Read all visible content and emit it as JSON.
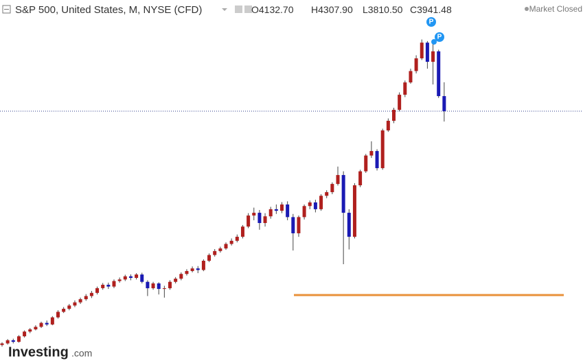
{
  "header": {
    "symbol": "S&P 500, United States, M, NYSE (CFD)",
    "ohlc": [
      {
        "label": "O",
        "value": "4132.70"
      },
      {
        "label": "H",
        "value": "4307.90"
      },
      {
        "label": "L",
        "value": "3810.50"
      },
      {
        "label": "C",
        "value": "3941.48"
      }
    ],
    "status": "Market Closed"
  },
  "markers": [
    "P",
    "P"
  ],
  "logo": {
    "brand": "Investing",
    "suffix": ".com"
  },
  "chart_data": {
    "type": "candlestick",
    "open": [
      980,
      1000,
      1040,
      1020,
      1090,
      1150,
      1178,
      1210,
      1260,
      1240,
      1330,
      1400,
      1439,
      1480,
      1520,
      1560,
      1600,
      1640,
      1700,
      1743,
      1720,
      1790,
      1810,
      1850,
      1830,
      1873,
      1780,
      1699,
      1760,
      1690,
      1699,
      1780,
      1820,
      1880,
      1917,
      1950,
      1930,
      2047,
      2120,
      2170,
      2203,
      2260,
      2300,
      2351,
      2480,
      2620,
      2655,
      2525,
      2610,
      2700,
      2680,
      2760,
      2600,
      2395,
      2600,
      2740,
      2786,
      2700,
      2870,
      2916,
      3020,
      3133,
      2655,
      2351,
      3003,
      3180,
      3380,
      3437,
      3220,
      3698,
      3820,
      3959,
      4150,
      4306,
      4450,
      4611,
      4810,
      4567,
      4700,
      4132.7
    ],
    "high": [
      1015,
      1055,
      1060,
      1105,
      1165,
      1195,
      1230,
      1275,
      1290,
      1345,
      1420,
      1460,
      1500,
      1545,
      1580,
      1625,
      1665,
      1720,
      1765,
      1770,
      1810,
      1835,
      1870,
      1875,
      1890,
      1895,
      1800,
      1780,
      1775,
      1730,
      1800,
      1840,
      1900,
      1940,
      1975,
      1980,
      2065,
      2140,
      2195,
      2225,
      2280,
      2330,
      2380,
      2500,
      2650,
      2720,
      2690,
      2650,
      2730,
      2760,
      2790,
      2800,
      2640,
      2620,
      2760,
      2810,
      2820,
      2890,
      2940,
      3040,
      3240,
      3180,
      2700,
      3030,
      3200,
      3400,
      3560,
      3460,
      3720,
      3850,
      3985,
      4180,
      4330,
      4480,
      4650,
      4850,
      4830,
      4790,
      4720,
      4307.9
    ],
    "low": [
      960,
      985,
      1000,
      1010,
      1075,
      1130,
      1165,
      1195,
      1220,
      1230,
      1315,
      1385,
      1420,
      1460,
      1500,
      1540,
      1575,
      1620,
      1680,
      1690,
      1700,
      1770,
      1790,
      1800,
      1810,
      1760,
      1600,
      1680,
      1620,
      1580,
      1680,
      1760,
      1800,
      1860,
      1900,
      1890,
      1915,
      2030,
      2100,
      2150,
      2185,
      2240,
      2280,
      2330,
      2460,
      2560,
      2440,
      2480,
      2580,
      2640,
      2650,
      2560,
      2177,
      2350,
      2570,
      2700,
      2660,
      2680,
      2840,
      2890,
      3000,
      2004,
      2190,
      2330,
      2980,
      3160,
      3350,
      3190,
      3200,
      3680,
      3790,
      3940,
      4120,
      4290,
      4420,
      4590,
      4480,
      4280,
      4110,
      3810.5
    ],
    "close": [
      1000,
      1040,
      1020,
      1090,
      1150,
      1178,
      1210,
      1260,
      1240,
      1330,
      1400,
      1439,
      1480,
      1520,
      1560,
      1600,
      1640,
      1700,
      1743,
      1720,
      1790,
      1810,
      1850,
      1830,
      1873,
      1780,
      1699,
      1760,
      1690,
      1699,
      1780,
      1820,
      1880,
      1917,
      1950,
      1930,
      2047,
      2120,
      2170,
      2203,
      2260,
      2300,
      2351,
      2480,
      2620,
      2655,
      2525,
      2610,
      2700,
      2680,
      2760,
      2600,
      2395,
      2600,
      2740,
      2786,
      2700,
      2870,
      2916,
      3020,
      3133,
      2655,
      2351,
      3003,
      3180,
      3380,
      3437,
      3220,
      3698,
      3820,
      3959,
      4150,
      4306,
      4450,
      4611,
      4810,
      4567,
      4700,
      4132.7,
      3941.48
    ],
    "up_color": "#b0201e",
    "down_color": "#1a1ab4",
    "ylim": [
      752,
      5350
    ],
    "hline": 1612,
    "hline_color": "#e8913a"
  }
}
